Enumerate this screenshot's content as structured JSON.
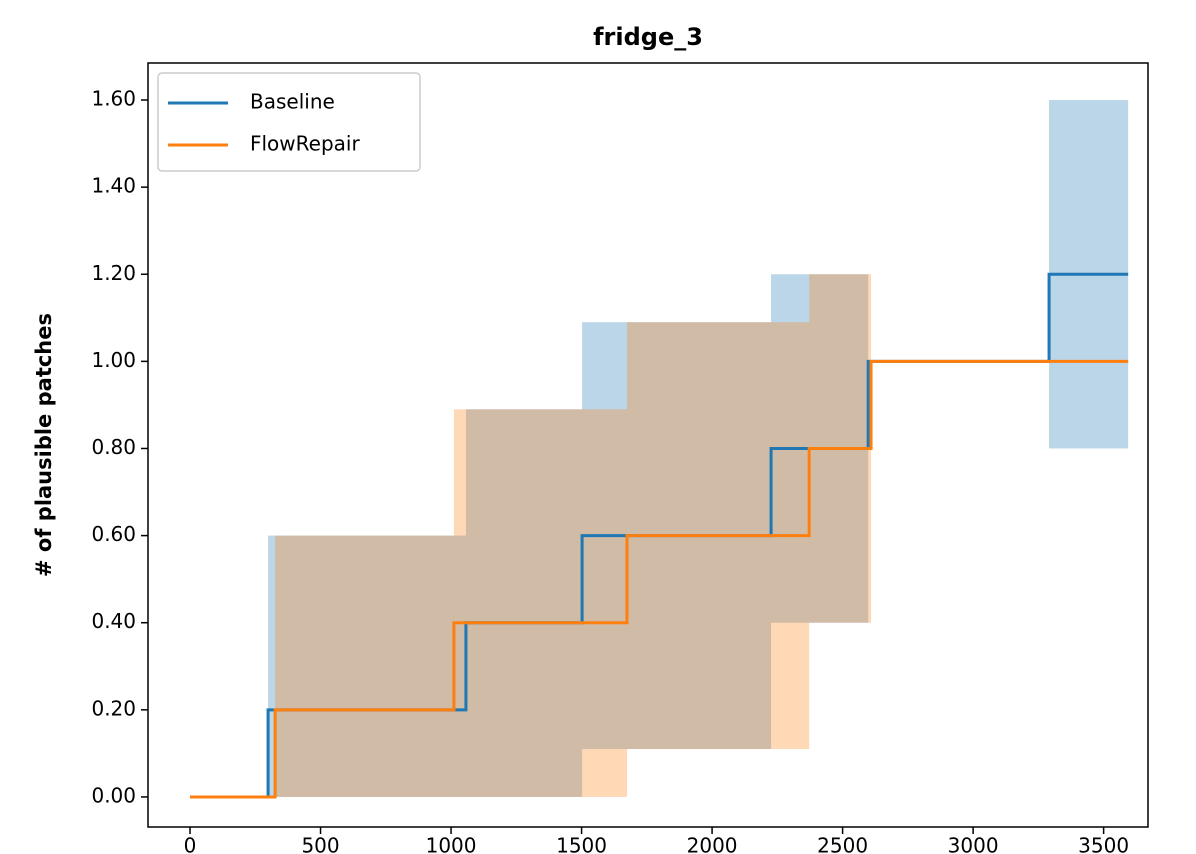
{
  "chart_data": {
    "type": "step",
    "title": "fridge_3",
    "ylabel": "# of plausible patches",
    "series": [
      {
        "name": "Baseline",
        "color": "#1f77b4",
        "x": [
          0,
          299,
          1057,
          1502,
          2226,
          2598,
          3291,
          3594
        ],
        "values": [
          0,
          0.2,
          0.4,
          0.6,
          0.8,
          1.0,
          1.2,
          1.2
        ],
        "lower": [
          0,
          0,
          0,
          0.11,
          0.4,
          1.0,
          0.8,
          0.8
        ],
        "upper": [
          0,
          0.6,
          0.89,
          1.09,
          1.2,
          1.0,
          1.6,
          1.6
        ]
      },
      {
        "name": "FlowRepair",
        "color": "#ff7f0e",
        "x": [
          0,
          326,
          1011,
          1674,
          2372,
          2609,
          3594
        ],
        "values": [
          0,
          0.2,
          0.4,
          0.6,
          0.8,
          1.0,
          1.0
        ],
        "lower": [
          0,
          0,
          0,
          0.11,
          0.4,
          1.0,
          1.0
        ],
        "upper": [
          0,
          0.6,
          0.89,
          1.09,
          1.2,
          1.0,
          1.0
        ]
      }
    ],
    "xlim": [
      -161,
      3670
    ],
    "ylim": [
      -0.069,
      1.685
    ],
    "xticks": [
      0,
      500,
      1000,
      1500,
      2000,
      2500,
      3000,
      3500
    ],
    "yticks": [
      {
        "value": 0,
        "label": "0.00"
      },
      {
        "value": 0.2,
        "label": "0.20"
      },
      {
        "value": 0.4,
        "label": "0.40"
      },
      {
        "value": 0.6,
        "label": "0.60"
      },
      {
        "value": 0.8,
        "label": "0.80"
      },
      {
        "value": 1.0,
        "label": "1.00"
      },
      {
        "value": 1.2,
        "label": "1.20"
      },
      {
        "value": 1.4,
        "label": "1.40"
      },
      {
        "value": 1.6,
        "label": "1.60"
      }
    ],
    "legend": "upper left",
    "band_opacity": 0.3
  }
}
